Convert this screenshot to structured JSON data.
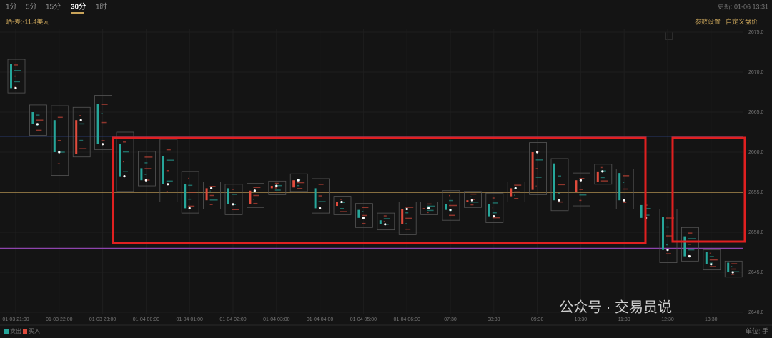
{
  "toolbar": {
    "tabs": [
      "1分",
      "5分",
      "15分",
      "30分",
      "1时"
    ],
    "active_tab": 3,
    "updated": "更新: 01-06 13:31",
    "spread": "晒-差:-11.4美元",
    "settings": "参数设置",
    "custom_price": "自定义盘价"
  },
  "watermark": "公众号 · 交易员说",
  "unit": "单位: 手",
  "chart_data": {
    "type": "candlestick",
    "categories": [
      "01-03 21:00",
      null,
      "01-03 22:00",
      null,
      "01-03 23:00",
      null,
      "01-04 00:00",
      null,
      "01-04 01:00",
      null,
      "01-04 02:00",
      null,
      "01-04 03:00",
      null,
      "01-04 04:00",
      null,
      "01-04 05:00",
      null,
      "01-04 06:00",
      null,
      "07:30",
      null,
      "08:30",
      null,
      "09:30",
      null,
      "10:30",
      null,
      "11:30",
      null,
      "12:30",
      null,
      "13:30",
      null
    ],
    "open": [
      2671,
      2665,
      2664,
      2659.8,
      2666,
      2661,
      2658,
      2659.5,
      2656,
      2654,
      2655.5,
      2653.5,
      2655.5,
      2655.6,
      2655.5,
      2653.3,
      2652.8,
      2651.5,
      2651,
      2652.9,
      2653.5,
      2653.8,
      2653.5,
      2654.5,
      2655.3,
      2658.6,
      2655,
      2656.3,
      2657.4,
      2653.4,
      2651.9,
      2649.5,
      2647.5,
      2646.2
    ],
    "high": [
      2671.6,
      2665.9,
      2665.8,
      2665.6,
      2667.1,
      2662.5,
      2660.1,
      2661.6,
      2657.6,
      2656.3,
      2656.0,
      2656.1,
      2656.4,
      2657.3,
      2656.7,
      2654.5,
      2653.6,
      2652.4,
      2653.8,
      2653.8,
      2655.2,
      2655.1,
      2654.9,
      2656.3,
      2661.2,
      2659.2,
      2657.4,
      2658.5,
      2657.9,
      2653.8,
      2652.9,
      2650.6,
      2647.8,
      2646.4
    ],
    "low": [
      2667.4,
      2662.1,
      2657.1,
      2659.4,
      2660.3,
      2655.1,
      2655.8,
      2653.8,
      2652.4,
      2652.9,
      2652.2,
      2653.1,
      2654.7,
      2655.1,
      2652.4,
      2652.2,
      2650.6,
      2650.3,
      2649.7,
      2652.2,
      2651.5,
      2653.1,
      2651.2,
      2653.8,
      2654.7,
      2652.7,
      2653.3,
      2656.0,
      2652.9,
      2651.3,
      2646.2,
      2646.4,
      2645.3,
      2644.4
    ],
    "close": [
      2668,
      2663.5,
      2660,
      2664,
      2661,
      2657,
      2656.5,
      2656,
      2653,
      2655.5,
      2653.5,
      2655.2,
      2655.8,
      2656.5,
      2653,
      2653.8,
      2651.8,
      2651,
      2652.9,
      2653,
      2652.8,
      2654,
      2652,
      2655.5,
      2660,
      2654,
      2656.5,
      2657.6,
      2654,
      2651.8,
      2647.8,
      2647,
      2646,
      2645
    ],
    "legend": [
      {
        "name": "卖出",
        "color": "#26a69a"
      },
      {
        "name": "买入",
        "color": "#e04b3c"
      }
    ],
    "hlines": {
      "values": [
        2662,
        2655,
        2648
      ],
      "colors": [
        "#3b5fc0",
        "#c9a45a",
        "#8e44ad"
      ]
    },
    "ylim": [
      2640,
      2675
    ],
    "yticks": [
      {
        "value": 2640,
        "label": "2640.0"
      },
      {
        "value": 2645,
        "label": "2645.0"
      },
      {
        "value": 2650,
        "label": "2650.0"
      },
      {
        "value": 2655,
        "label": "2655.0"
      },
      {
        "value": 2660,
        "label": "2660.0"
      },
      {
        "value": 2665,
        "label": "2665.0"
      },
      {
        "value": 2670,
        "label": "2670.0"
      },
      {
        "value": 2675,
        "label": "2675.0"
      }
    ],
    "grid": true
  }
}
